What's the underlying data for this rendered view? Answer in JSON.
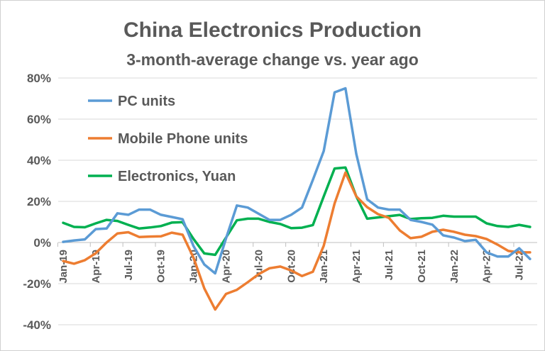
{
  "chart_data": {
    "type": "line",
    "title": "China Electronics Production",
    "subtitle": "3-month-average change vs. year ago",
    "xlabel": "",
    "ylabel": "",
    "ylim": [
      -40,
      80
    ],
    "y_ticks": [
      "80%",
      "60%",
      "40%",
      "20%",
      "0%",
      "-20%",
      "-40%"
    ],
    "y_tick_values": [
      80,
      60,
      40,
      20,
      0,
      -20,
      -40
    ],
    "grid": true,
    "legend": "top-left, inside plot",
    "x": [
      "Jan-19",
      "Feb-19",
      "Mar-19",
      "Apr-19",
      "May-19",
      "Jun-19",
      "Jul-19",
      "Aug-19",
      "Sep-19",
      "Oct-19",
      "Nov-19",
      "Dec-19",
      "Jan-20",
      "Feb-20",
      "Mar-20",
      "Apr-20",
      "May-20",
      "Jun-20",
      "Jul-20",
      "Aug-20",
      "Sep-20",
      "Oct-20",
      "Nov-20",
      "Dec-20",
      "Jan-21",
      "Feb-21",
      "Mar-21",
      "Apr-21",
      "May-21",
      "Jun-21",
      "Jul-21",
      "Aug-21",
      "Sep-21",
      "Oct-21",
      "Nov-21",
      "Dec-21",
      "Jan-22",
      "Feb-22",
      "Mar-22",
      "Apr-22",
      "May-22",
      "Jun-22",
      "Jul-22",
      "Aug-22"
    ],
    "x_tick_labels": [
      "Jan-19",
      "Apr-19",
      "Jul-19",
      "Oct-19",
      "Jan-20",
      "Apr-20",
      "Jul-20",
      "Oct-20",
      "Jan-21",
      "Apr-21",
      "Jul-21",
      "Oct-21",
      "Jan-22",
      "Apr-22",
      "Jul-22"
    ],
    "series": [
      {
        "name": "PC units",
        "color": "#5b9bd5",
        "values": [
          0.3,
          1,
          1.5,
          6.5,
          6.8,
          14.2,
          13.5,
          16,
          16,
          13.5,
          12.4,
          11.3,
          -1.7,
          -10.7,
          -15,
          2,
          18,
          17,
          14,
          11,
          11,
          13.5,
          17,
          30.5,
          44.5,
          73,
          75,
          43,
          21,
          17,
          16,
          16,
          11,
          10,
          8.7,
          3.5,
          2.4,
          0.7,
          1.3,
          -4.8,
          -6.8,
          -6.8,
          -2.8,
          -8
        ]
      },
      {
        "name": "Mobile Phone units",
        "color": "#ed7d31",
        "values": [
          -9,
          -10.3,
          -8.6,
          -5.2,
          0,
          4.4,
          5,
          2.7,
          2.9,
          3,
          4.8,
          3.8,
          -7.3,
          -22.3,
          -32.6,
          -25,
          -23,
          -19.3,
          -15.4,
          -12.5,
          -11.7,
          -13.6,
          -16.3,
          -14.2,
          -1.6,
          19,
          34,
          22.4,
          17.2,
          13.8,
          12,
          5.9,
          2.1,
          2.8,
          5.2,
          6.2,
          5.2,
          3.8,
          3.1,
          1.7,
          -1,
          -4.1,
          -4.8,
          -4.8
        ]
      },
      {
        "name": "Electronics, Yuan",
        "color": "#00b050",
        "values": [
          9.6,
          7.6,
          7.4,
          9.3,
          11,
          10.5,
          8.6,
          6.8,
          7.3,
          8,
          9.7,
          9.9,
          1.8,
          -5.3,
          -6,
          2.4,
          10.8,
          11.6,
          11.6,
          10,
          9,
          7,
          7.2,
          8.5,
          22.4,
          36,
          36.5,
          22.4,
          11.6,
          12.2,
          12.8,
          13.4,
          11.4,
          11.8,
          12,
          13,
          12.6,
          12.6,
          12.6,
          9.3,
          8,
          7.6,
          8.6,
          7.6
        ]
      }
    ]
  }
}
